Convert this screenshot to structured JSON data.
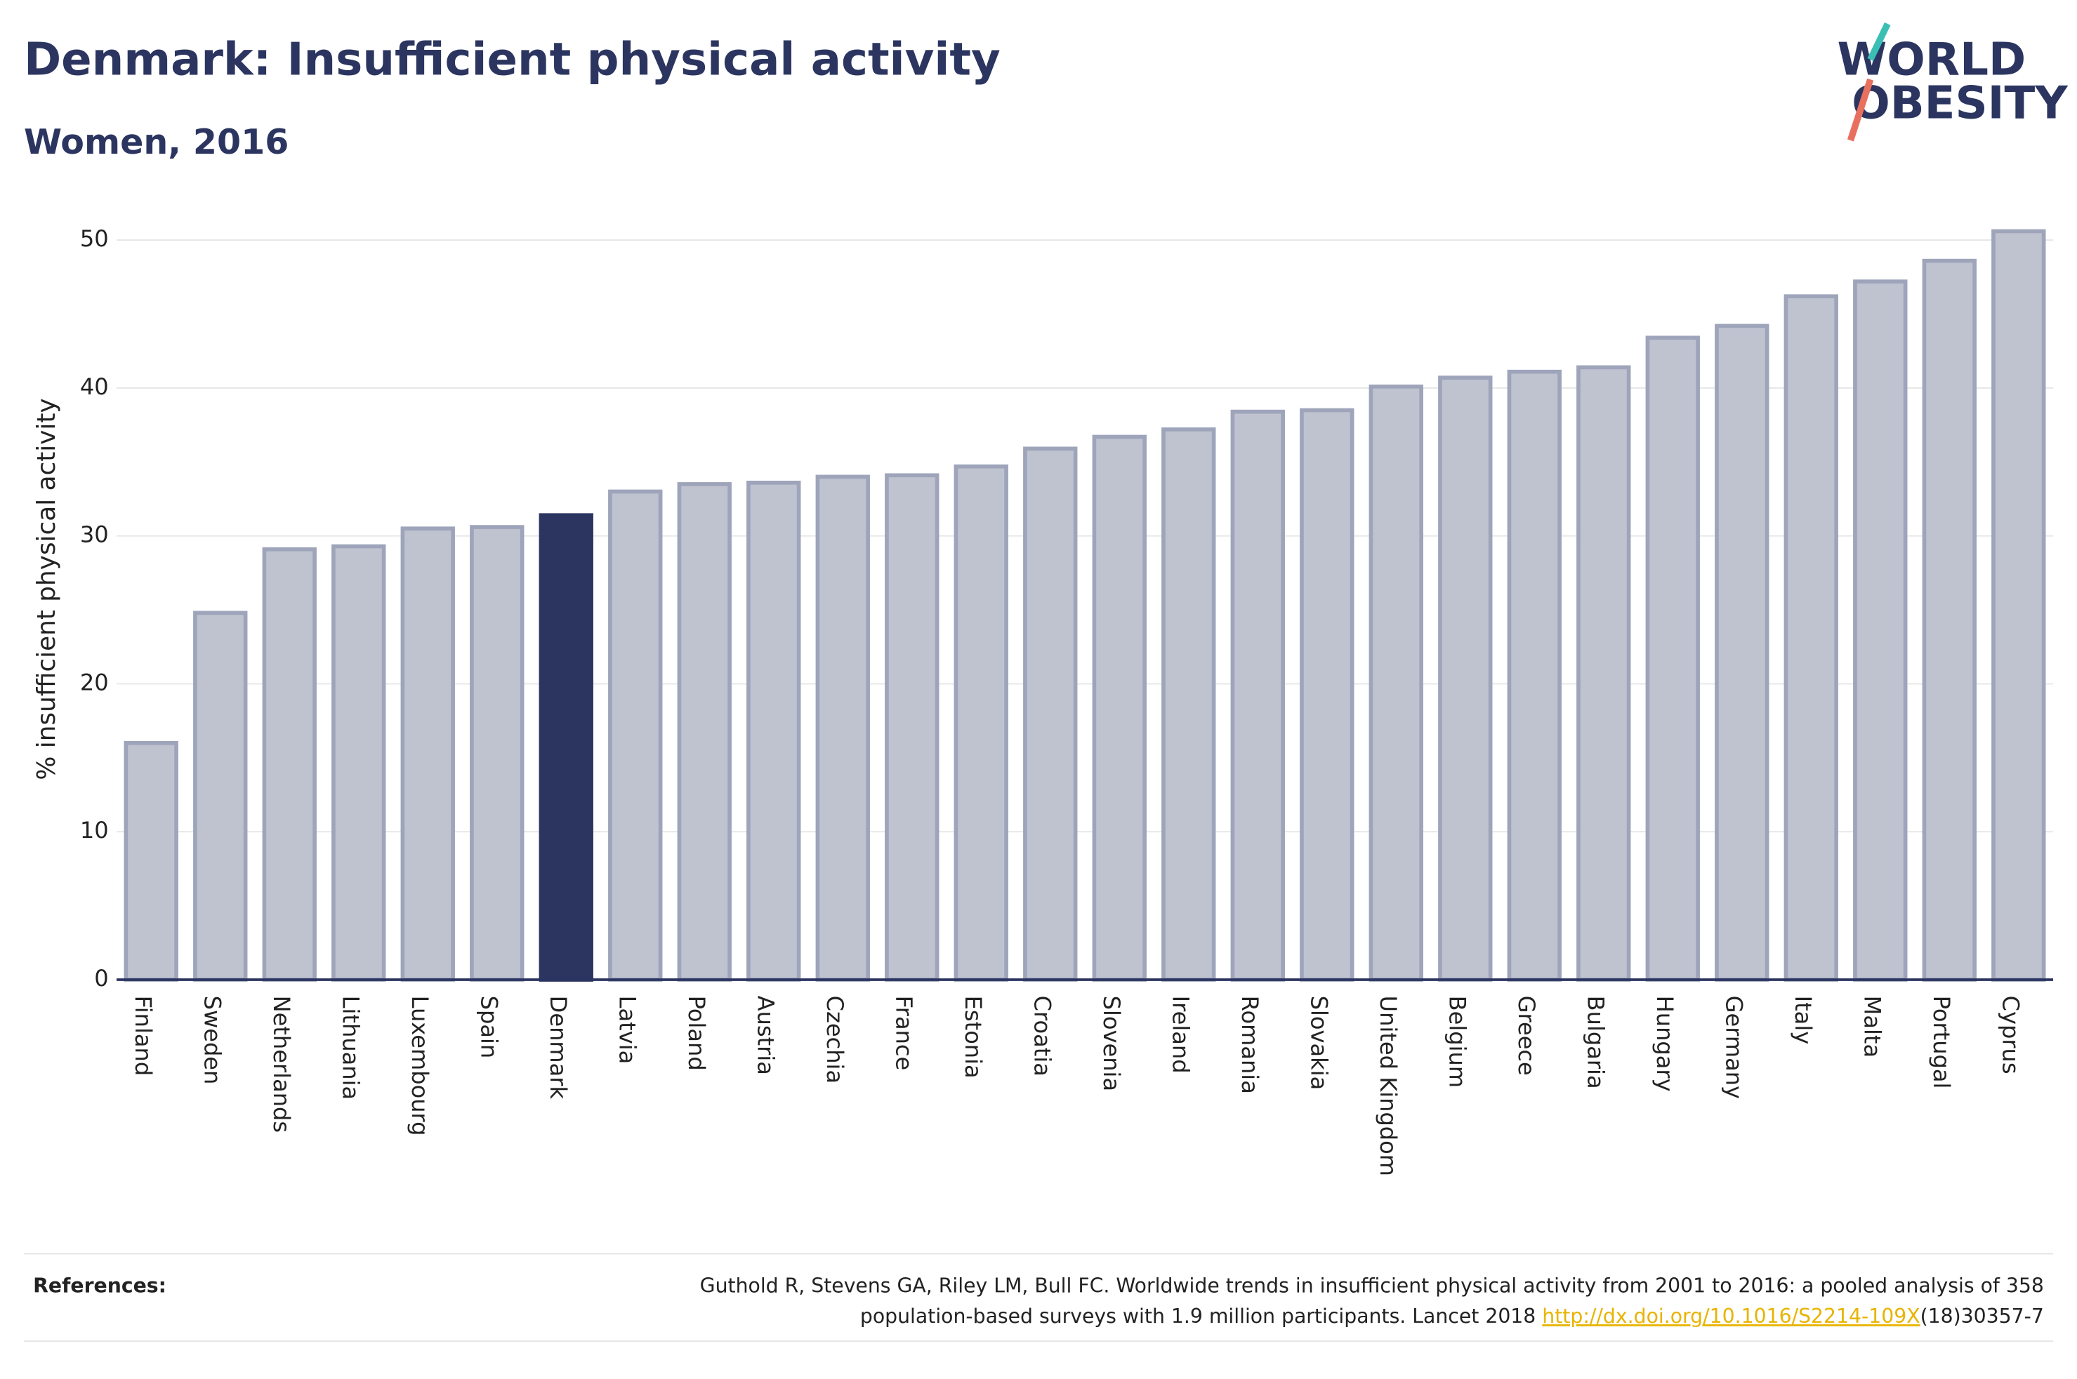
{
  "title": "Denmark: Insufficient physical activity",
  "subtitle": "Women, 2016",
  "logo": {
    "line1": "WORLD",
    "line2": "OBESITY"
  },
  "chart_data": {
    "type": "bar",
    "y_label": "% insufficient physical activity",
    "categories": [
      "Finland",
      "Sweden",
      "Netherlands",
      "Lithuania",
      "Luxembourg",
      "Spain",
      "Denmark",
      "Latvia",
      "Poland",
      "Austria",
      "Czechia",
      "France",
      "Estonia",
      "Croatia",
      "Slovenia",
      "Ireland",
      "Romania",
      "Slovakia",
      "United Kingdom",
      "Belgium",
      "Greece",
      "Bulgaria",
      "Hungary",
      "Germany",
      "Italy",
      "Malta",
      "Portugal",
      "Cyprus"
    ],
    "values": [
      16.0,
      24.8,
      29.1,
      29.3,
      30.5,
      30.6,
      31.4,
      33.0,
      33.5,
      33.6,
      34.0,
      34.1,
      34.7,
      35.9,
      36.7,
      37.2,
      38.4,
      38.5,
      40.1,
      40.7,
      41.1,
      41.4,
      43.4,
      44.2,
      46.2,
      47.2,
      48.6,
      50.6
    ],
    "colors": [
      "#bfc3d0",
      "#bfc3d0",
      "#bfc3d0",
      "#bfc3d0",
      "#bfc3d0",
      "#bfc3d0",
      "#2b3560",
      "#bfc3d0",
      "#bfc3d0",
      "#bfc3d0",
      "#bfc3d0",
      "#bfc3d0",
      "#bfc3d0",
      "#bfc3d0",
      "#bfc3d0",
      "#bfc3d0",
      "#bfc3d0",
      "#bfc3d0",
      "#bfc3d0",
      "#bfc3d0",
      "#bfc3d0",
      "#bfc3d0",
      "#bfc3d0",
      "#bfc3d0",
      "#bfc3d0",
      "#bfc3d0",
      "#bfc3d0",
      "#bfc3d0"
    ],
    "ylim": [
      0,
      52
    ],
    "yticks": [
      0,
      10,
      20,
      30,
      40,
      50
    ],
    "grid": true
  },
  "references": {
    "label": "References:",
    "line1": "Guthold R, Stevens GA, Riley LM, Bull FC. Worldwide trends in insufficient physical activity from 2001 to 2016: a pooled analysis of 358",
    "line2": "population-based surveys with 1.9 million participants. Lancet 2018 ",
    "link": "http://dx.doi.org/10.1016/S2214-109X",
    "suffix": "(18)30357-7"
  }
}
